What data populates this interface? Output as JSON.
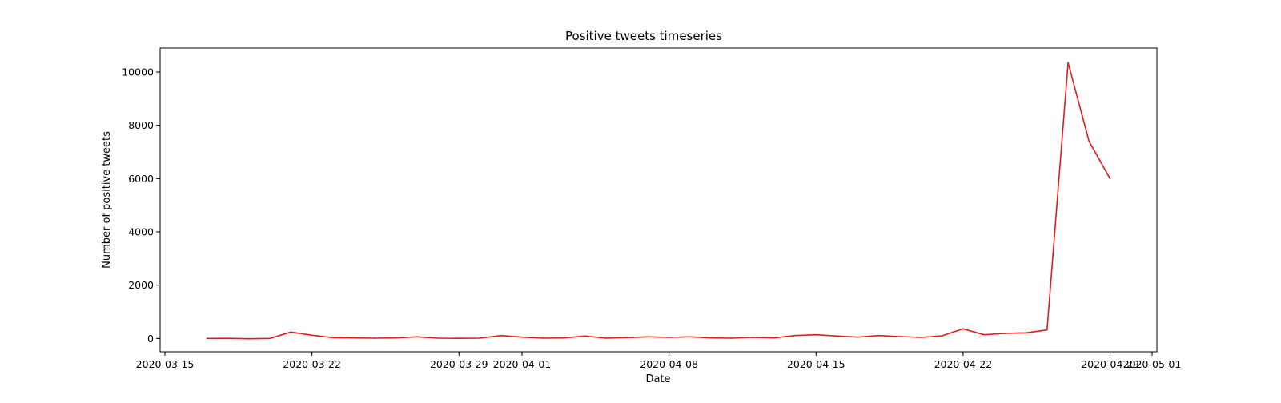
{
  "chart_data": {
    "type": "line",
    "title": "Positive tweets timeseries",
    "xlabel": "Date",
    "ylabel": "Number of positive tweets",
    "x_tick_labels": [
      "2020-03-15",
      "2020-03-22",
      "2020-03-29",
      "2020-04-01",
      "2020-04-08",
      "2020-04-15",
      "2020-04-22",
      "2020-04-29",
      "2020-05-01"
    ],
    "y_tick_labels": [
      "0",
      "2000",
      "4000",
      "6000",
      "8000",
      "10000"
    ],
    "x_ticks": [
      "2020-03-15",
      "2020-03-22",
      "2020-03-29",
      "2020-04-01",
      "2020-04-08",
      "2020-04-15",
      "2020-04-22",
      "2020-04-29",
      "2020-05-01"
    ],
    "y_ticks": [
      0,
      2000,
      4000,
      6000,
      8000,
      10000
    ],
    "xlim": [
      "2020-03-15",
      "2020-05-01"
    ],
    "ylim": [
      -500,
      10900
    ],
    "grid": false,
    "series": [
      {
        "color": "#e41a1c",
        "x": [
          "2020-03-17",
          "2020-03-18",
          "2020-03-19",
          "2020-03-20",
          "2020-03-21",
          "2020-03-22",
          "2020-03-23",
          "2020-03-24",
          "2020-03-25",
          "2020-03-26",
          "2020-03-27",
          "2020-03-28",
          "2020-03-29",
          "2020-03-30",
          "2020-03-31",
          "2020-04-01",
          "2020-04-02",
          "2020-04-03",
          "2020-04-04",
          "2020-04-05",
          "2020-04-06",
          "2020-04-07",
          "2020-04-08",
          "2020-04-09",
          "2020-04-10",
          "2020-04-11",
          "2020-04-12",
          "2020-04-13",
          "2020-04-14",
          "2020-04-15",
          "2020-04-16",
          "2020-04-17",
          "2020-04-18",
          "2020-04-19",
          "2020-04-20",
          "2020-04-21",
          "2020-04-22",
          "2020-04-23",
          "2020-04-24",
          "2020-04-25",
          "2020-04-26",
          "2020-04-27",
          "2020-04-28",
          "2020-04-29"
        ],
        "y": [
          0,
          5,
          -10,
          0,
          240,
          120,
          30,
          20,
          10,
          20,
          60,
          10,
          5,
          10,
          110,
          50,
          10,
          20,
          90,
          10,
          30,
          60,
          40,
          60,
          20,
          10,
          40,
          20,
          110,
          140,
          90,
          50,
          110,
          70,
          40,
          100,
          360,
          140,
          190,
          210,
          320,
          10350,
          7400,
          6000
        ]
      }
    ]
  }
}
